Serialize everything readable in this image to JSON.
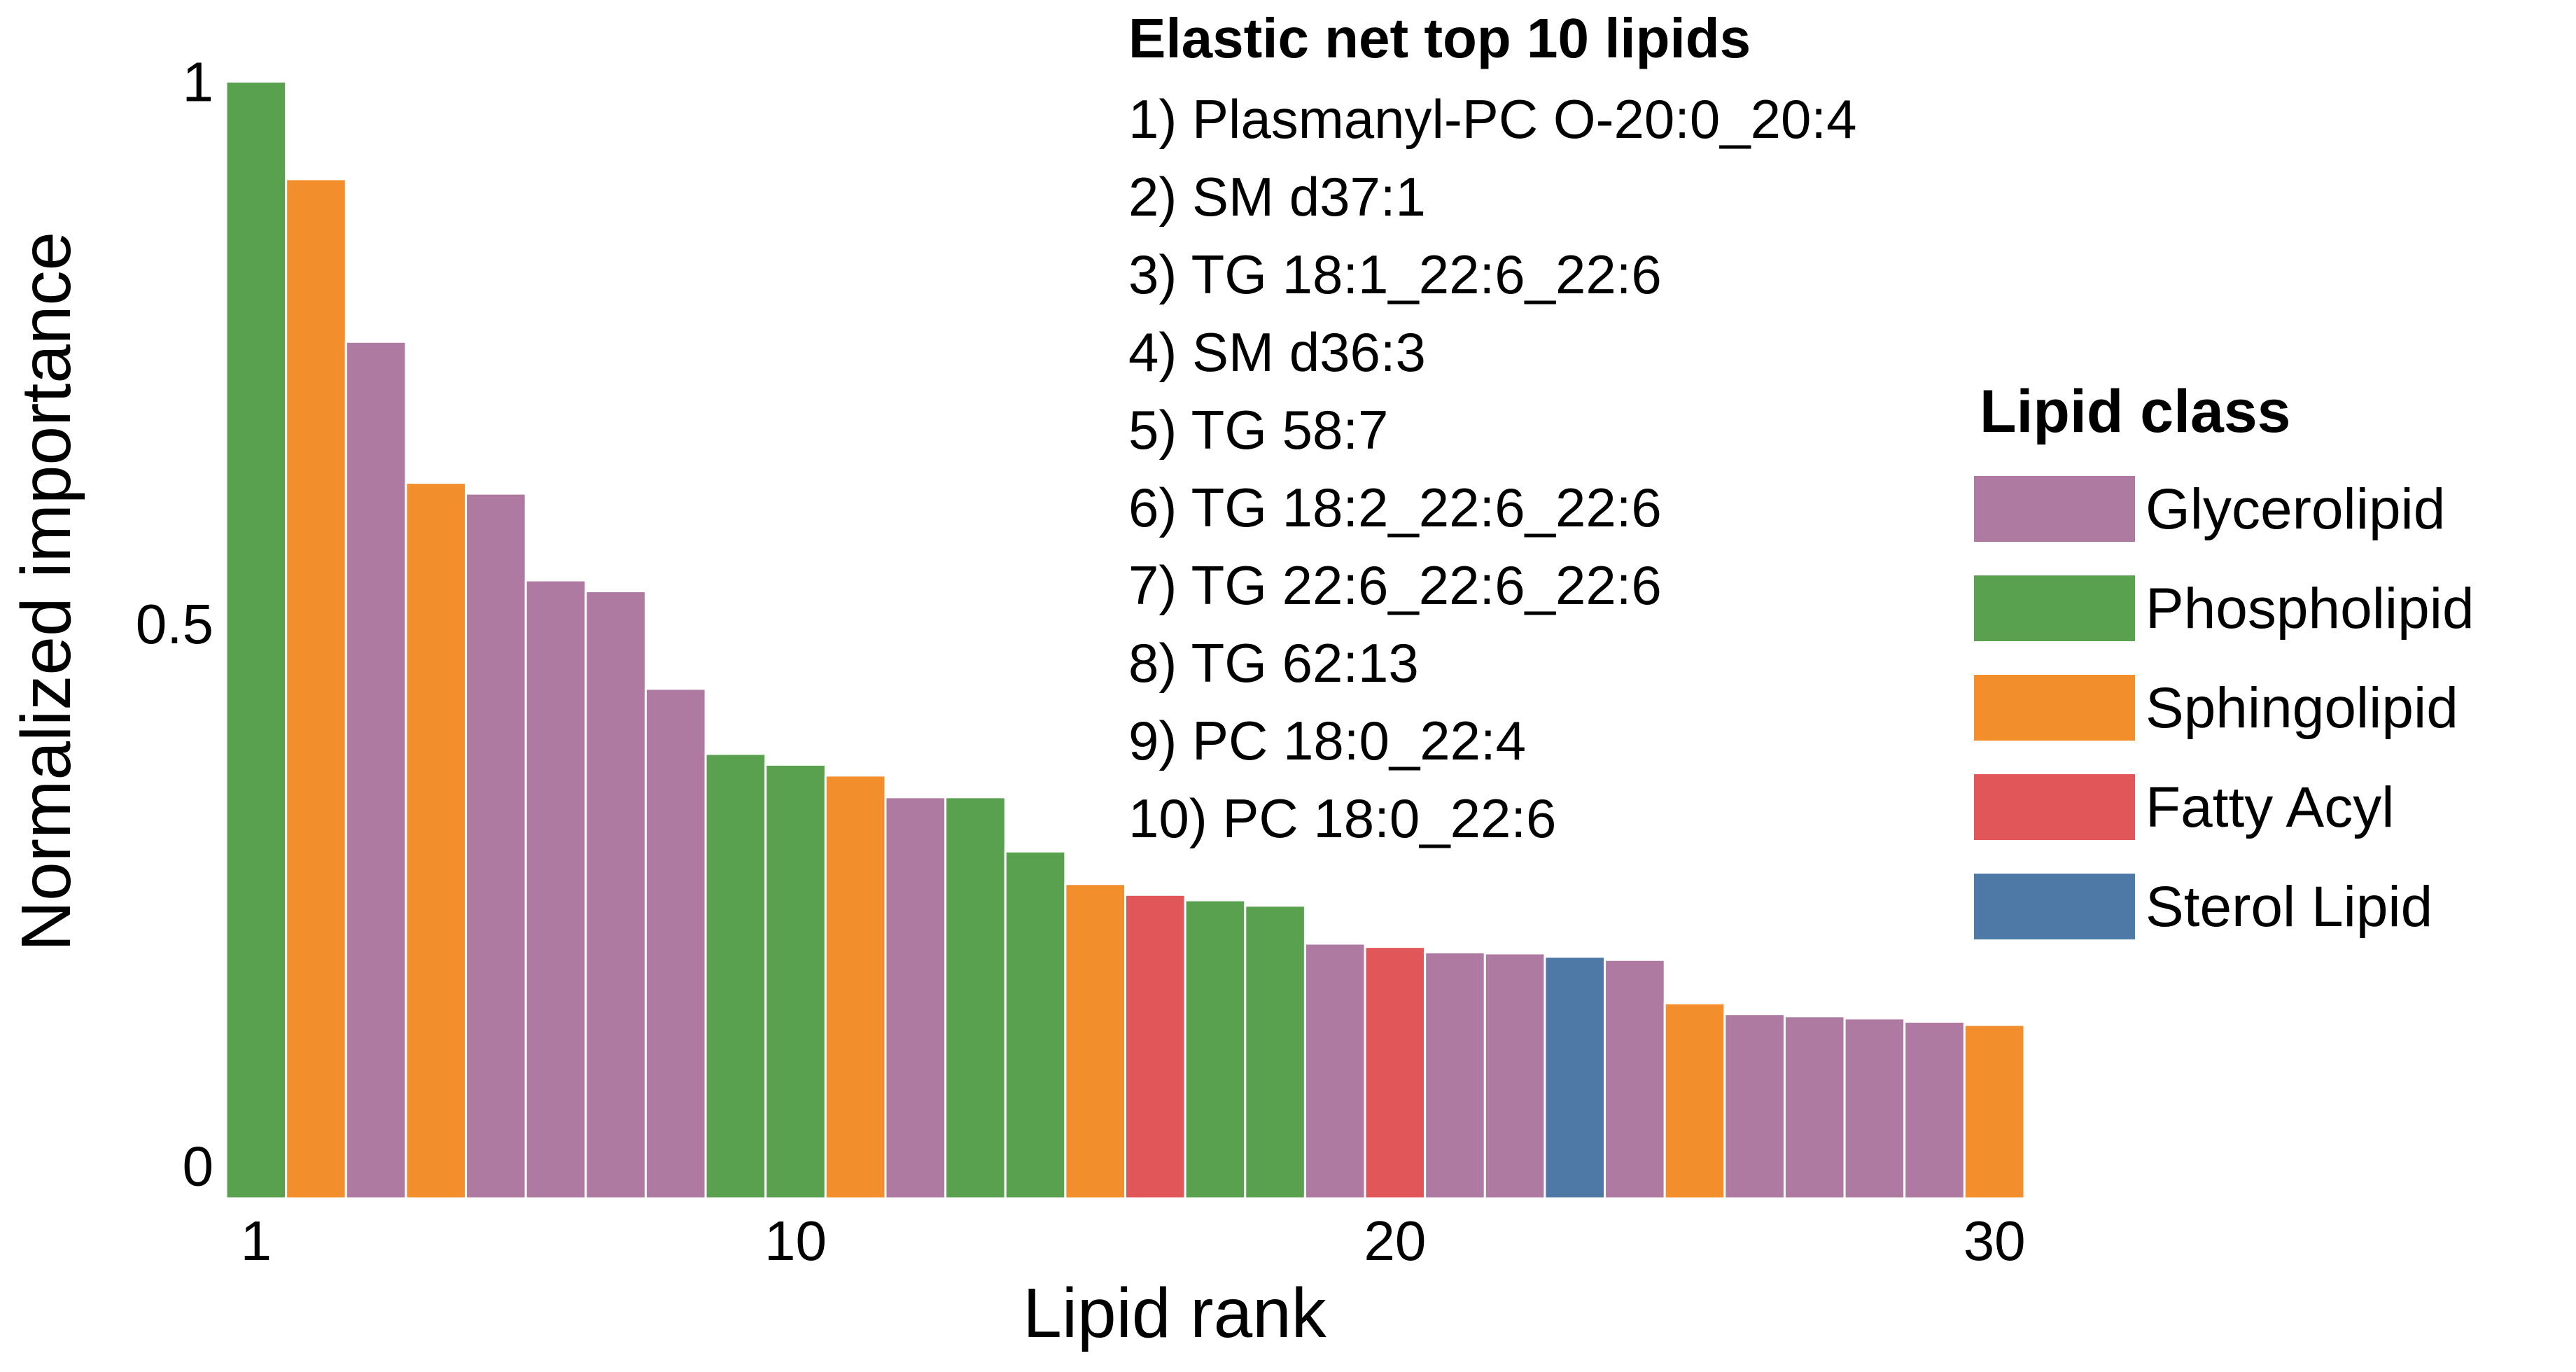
{
  "chart_data": {
    "type": "bar",
    "xlabel": "Lipid rank",
    "ylabel": "Normalized importance",
    "xlim": [
      0.5,
      30.5
    ],
    "ylim": [
      -0.03,
      1.03
    ],
    "xticks": [
      1,
      10,
      20,
      30
    ],
    "yticks": [
      0,
      0.5,
      1
    ],
    "ytick_labels": [
      "0",
      "0.5",
      "1"
    ],
    "grid": false,
    "categories": [
      1,
      2,
      3,
      4,
      5,
      6,
      7,
      8,
      9,
      10,
      11,
      12,
      13,
      14,
      15,
      16,
      17,
      18,
      19,
      20,
      21,
      22,
      23,
      24,
      25,
      26,
      27,
      28,
      29,
      30
    ],
    "values": [
      1.0,
      0.91,
      0.76,
      0.63,
      0.62,
      0.54,
      0.53,
      0.44,
      0.38,
      0.37,
      0.36,
      0.34,
      0.34,
      0.29,
      0.26,
      0.25,
      0.245,
      0.24,
      0.205,
      0.202,
      0.197,
      0.196,
      0.193,
      0.19,
      0.15,
      0.14,
      0.138,
      0.136,
      0.133,
      0.13
    ],
    "classes": [
      "Phospholipid",
      "Sphingolipid",
      "Glycerolipid",
      "Sphingolipid",
      "Glycerolipid",
      "Glycerolipid",
      "Glycerolipid",
      "Glycerolipid",
      "Phospholipid",
      "Phospholipid",
      "Sphingolipid",
      "Glycerolipid",
      "Phospholipid",
      "Phospholipid",
      "Sphingolipid",
      "Fatty Acyl",
      "Phospholipid",
      "Phospholipid",
      "Glycerolipid",
      "Fatty Acyl",
      "Glycerolipid",
      "Glycerolipid",
      "Sterol Lipid",
      "Glycerolipid",
      "Sphingolipid",
      "Glycerolipid",
      "Glycerolipid",
      "Glycerolipid",
      "Glycerolipid",
      "Sphingolipid"
    ],
    "legend": {
      "title": "Lipid class",
      "placement": "right",
      "items": [
        {
          "name": "Glycerolipid",
          "color": "#AF7AA1"
        },
        {
          "name": "Phospholipid",
          "color": "#59A14F"
        },
        {
          "name": "Sphingolipid",
          "color": "#F28E2B"
        },
        {
          "name": "Fatty Acyl",
          "color": "#E15759"
        },
        {
          "name": "Sterol Lipid",
          "color": "#4E79A7"
        }
      ]
    },
    "annotation": {
      "title": "Elastic net top 10 lipids",
      "lines": [
        "1) Plasmanyl-PC O-20:0_20:4",
        "2) SM d37:1",
        "3) TG 18:1_22:6_22:6",
        "4) SM d36:3",
        "5) TG 58:7",
        "6) TG 18:2_22:6_22:6",
        "7) TG 22:6_22:6_22:6",
        "8) TG 62:13",
        "9) PC 18:0_22:4",
        "10) PC 18:0_22:6"
      ]
    }
  }
}
